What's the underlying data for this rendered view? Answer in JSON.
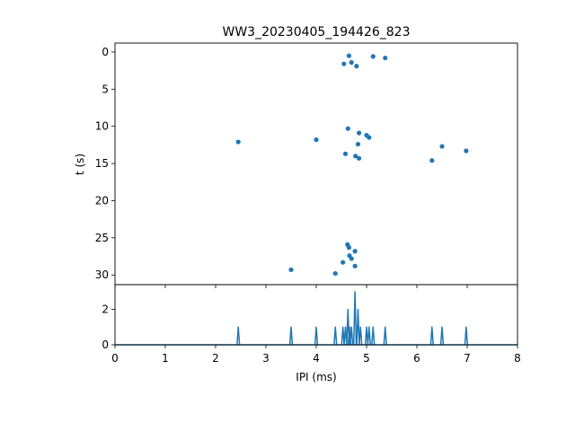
{
  "chart_data": [
    {
      "type": "scatter",
      "title": "WW3_20230405_194426_823",
      "xlabel": "",
      "ylabel": "t (s)",
      "xlim": [
        0,
        8
      ],
      "ylim": [
        31.3,
        -1.2
      ],
      "y_inverted": true,
      "yticks": [
        0,
        5,
        10,
        15,
        20,
        25,
        30
      ],
      "x_tick_labels_shown": false,
      "grid": false,
      "color": "#1f77b4",
      "points": [
        {
          "x": 4.65,
          "y": 0.5
        },
        {
          "x": 5.13,
          "y": 0.6
        },
        {
          "x": 5.37,
          "y": 0.8
        },
        {
          "x": 4.7,
          "y": 1.4
        },
        {
          "x": 4.55,
          "y": 1.6
        },
        {
          "x": 4.8,
          "y": 1.9
        },
        {
          "x": 4.63,
          "y": 10.3
        },
        {
          "x": 4.85,
          "y": 10.9
        },
        {
          "x": 5.0,
          "y": 11.2
        },
        {
          "x": 5.05,
          "y": 11.5
        },
        {
          "x": 2.45,
          "y": 12.1
        },
        {
          "x": 4.0,
          "y": 11.8
        },
        {
          "x": 4.83,
          "y": 12.4
        },
        {
          "x": 6.5,
          "y": 12.7
        },
        {
          "x": 4.58,
          "y": 13.7
        },
        {
          "x": 4.78,
          "y": 14.0
        },
        {
          "x": 4.85,
          "y": 14.3
        },
        {
          "x": 6.98,
          "y": 13.3
        },
        {
          "x": 6.3,
          "y": 14.6
        },
        {
          "x": 4.62,
          "y": 25.9
        },
        {
          "x": 4.65,
          "y": 26.3
        },
        {
          "x": 4.77,
          "y": 26.8
        },
        {
          "x": 4.66,
          "y": 27.4
        },
        {
          "x": 4.7,
          "y": 27.8
        },
        {
          "x": 4.53,
          "y": 28.3
        },
        {
          "x": 4.77,
          "y": 28.8
        },
        {
          "x": 3.5,
          "y": 29.3
        },
        {
          "x": 4.38,
          "y": 29.8
        }
      ]
    },
    {
      "type": "line",
      "title": "",
      "xlabel": "IPI (ms)",
      "ylabel": "",
      "xlim": [
        0,
        8
      ],
      "ylim": [
        0,
        3.4
      ],
      "xticks": [
        0,
        1,
        2,
        3,
        4,
        5,
        6,
        7,
        8
      ],
      "yticks": [
        0,
        2
      ],
      "grid": false,
      "color": "#1f77b4",
      "peaks": [
        {
          "x": 2.45,
          "count": 1
        },
        {
          "x": 3.5,
          "count": 1
        },
        {
          "x": 4.0,
          "count": 1
        },
        {
          "x": 4.38,
          "count": 1
        },
        {
          "x": 4.53,
          "count": 1
        },
        {
          "x": 4.58,
          "count": 1
        },
        {
          "x": 4.63,
          "count": 2
        },
        {
          "x": 4.66,
          "count": 1
        },
        {
          "x": 4.7,
          "count": 1
        },
        {
          "x": 4.77,
          "count": 3
        },
        {
          "x": 4.83,
          "count": 2
        },
        {
          "x": 4.88,
          "count": 1
        },
        {
          "x": 5.0,
          "count": 1
        },
        {
          "x": 5.05,
          "count": 1
        },
        {
          "x": 5.13,
          "count": 1
        },
        {
          "x": 5.37,
          "count": 1
        },
        {
          "x": 6.3,
          "count": 1
        },
        {
          "x": 6.5,
          "count": 1
        },
        {
          "x": 6.98,
          "count": 1
        }
      ]
    }
  ]
}
